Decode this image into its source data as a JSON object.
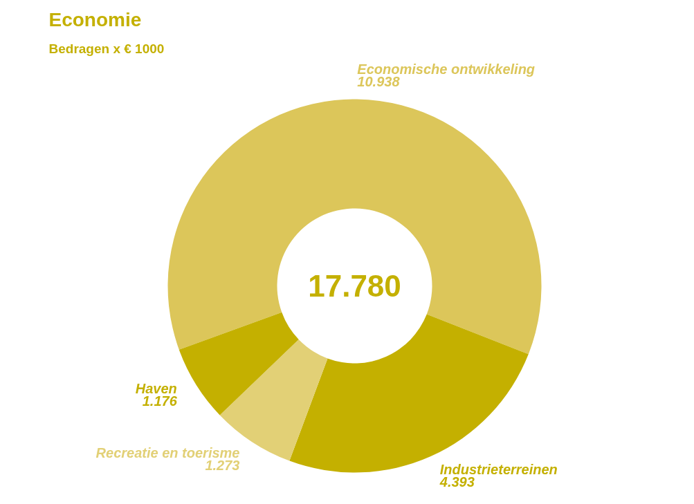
{
  "chart_data": {
    "type": "donut",
    "title": "Economie",
    "subtitle": "Bedragen x € 1000",
    "categories": [
      "Economische ontwikkeling",
      "Industrieterreinen",
      "Recreatie en toerisme",
      "Haven"
    ],
    "values": [
      10938,
      4393,
      1273,
      1176
    ],
    "colors": [
      "#dcc65a",
      "#c4b000",
      "#e2d076",
      "#c4b000"
    ],
    "value_labels": [
      "10.938",
      "4.393",
      "1.273",
      "1.176"
    ],
    "annotations": [
      "17.780"
    ]
  }
}
